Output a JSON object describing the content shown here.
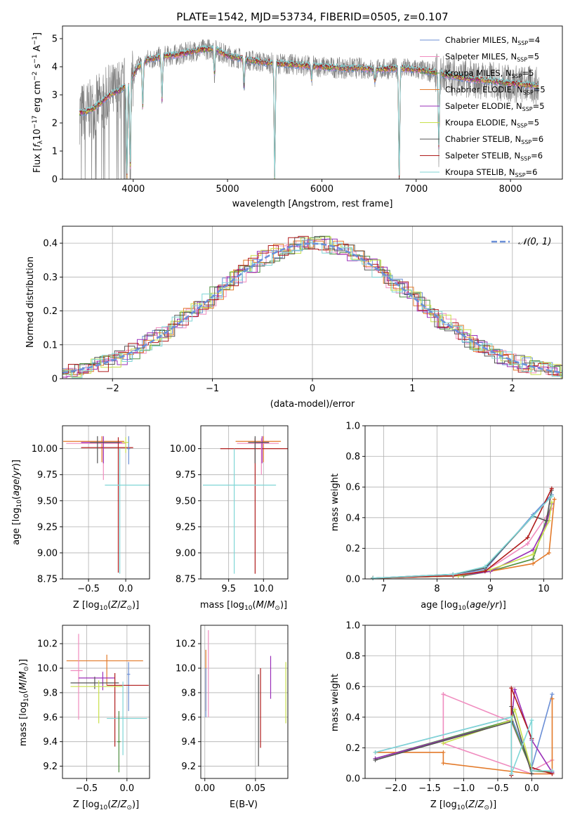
{
  "figure_title": "PLATE=1542, MJD=53734, FIBERID=0505, z=0.107",
  "series_styles": [
    {
      "name": "Chabrier MILES, N$_{SSP}$=4",
      "label_main": "Chabrier MILES, N",
      "label_sub": "SSP",
      "label_tail": "=4",
      "color": "#6b8fd6"
    },
    {
      "name": "Salpeter MILES, N$_{SSP}$=5",
      "label_main": "Salpeter MILES, N",
      "label_sub": "SSP",
      "label_tail": "=5",
      "color": "#f08cbf"
    },
    {
      "name": "Kroupa MILES, N$_{SSP}$=5",
      "label_main": "Kroupa MILES, N",
      "label_sub": "SSP",
      "label_tail": "=5",
      "color": "#4f8f3f"
    },
    {
      "name": "Chabrier ELODIE, N$_{SSP}$=5",
      "label_main": "Chabrier ELODIE, N",
      "label_sub": "SSP",
      "label_tail": "=5",
      "color": "#e37a2a"
    },
    {
      "name": "Salpeter ELODIE, N$_{SSP}$=5",
      "label_main": "Salpeter ELODIE, N",
      "label_sub": "SSP",
      "label_tail": "=5",
      "color": "#9a2fb8"
    },
    {
      "name": "Kroupa ELODIE, N$_{SSP}$=5",
      "label_main": "Kroupa ELODIE, N",
      "label_sub": "SSP",
      "label_tail": "=5",
      "color": "#c8e04a"
    },
    {
      "name": "Chabrier STELIB, N$_{SSP}$=6",
      "label_main": "Chabrier STELIB, N",
      "label_sub": "SSP",
      "label_tail": "=6",
      "color": "#555555"
    },
    {
      "name": "Salpeter STELIB, N$_{SSP}$=6",
      "label_main": "Salpeter STELIB, N",
      "label_sub": "SSP",
      "label_tail": "=6",
      "color": "#b01c1c"
    },
    {
      "name": "Kroupa STELIB, N$_{SSP}$=6",
      "label_main": "Kroupa STELIB, N",
      "label_sub": "SSP",
      "label_tail": "=6",
      "color": "#7fd6d6"
    }
  ],
  "chart_data": [
    {
      "id": "spectrum",
      "type": "line",
      "xlabel": "wavelength [Angstrom, rest frame]",
      "ylabel": "Flux [f$_\\lambda$10$^{-17}$ erg cm$^{-2}$ s$^{-1}$ A$^{-1}$]",
      "xlim": [
        3250,
        8550
      ],
      "ylim": [
        0,
        5.45
      ],
      "xticks": [
        4000,
        5000,
        6000,
        7000,
        8000
      ],
      "yticks": [
        0,
        1,
        2,
        3,
        4,
        5
      ],
      "legend": "right",
      "grid": false,
      "continuum": {
        "x": [
          3430,
          3550,
          3650,
          3750,
          3850,
          3950,
          4050,
          4150,
          4300,
          4500,
          4700,
          4850,
          5000,
          5200,
          5400,
          5600,
          5800,
          6000,
          6200,
          6400,
          6600,
          6800,
          7000,
          7200,
          7400,
          7600,
          7800,
          8000,
          8200,
          8300
        ],
        "y": [
          2.35,
          2.45,
          2.7,
          3.0,
          3.15,
          3.4,
          4.0,
          4.25,
          4.35,
          4.45,
          4.6,
          4.65,
          4.4,
          4.25,
          4.15,
          4.1,
          4.05,
          4.0,
          3.95,
          3.95,
          3.9,
          3.95,
          3.9,
          3.8,
          3.65,
          3.55,
          3.5,
          3.4,
          3.35,
          3.3
        ]
      },
      "dips": [
        {
          "x": 3933,
          "y": 0.05
        },
        {
          "x": 3968,
          "y": 0.3
        },
        {
          "x": 4101,
          "y": 2.6
        },
        {
          "x": 4305,
          "y": 2.8
        },
        {
          "x": 4861,
          "y": 3.7
        },
        {
          "x": 5175,
          "y": 3.3
        },
        {
          "x": 5500,
          "y": 0.0
        },
        {
          "x": 5890,
          "y": 3.5
        },
        {
          "x": 6563,
          "y": 3.5
        },
        {
          "x": 6820,
          "y": 0.0
        },
        {
          "x": 7240,
          "y": 1.1
        }
      ]
    },
    {
      "id": "residuals",
      "type": "histogram",
      "xlabel": "(data-model)/error",
      "ylabel": "Normed distribution",
      "xlim": [
        -2.5,
        2.5
      ],
      "ylim": [
        0,
        0.45
      ],
      "xticks": [
        -2,
        -1,
        0,
        1,
        2
      ],
      "yticks": [
        0,
        0.1,
        0.2,
        0.3,
        0.4
      ],
      "grid": true,
      "legend": "top-right",
      "reference_label": "$\\mathcal{N}(0,1)$",
      "reference_label_text": "𝒩(0, 1)",
      "reference": {
        "type": "gaussian",
        "mu": 0,
        "sigma": 1
      }
    },
    {
      "id": "age_vs_Z",
      "type": "errorbar",
      "xlabel": "Z [log$_{10}$(Z/Z$_\\odot$)]",
      "ylabel": "age  [log$_{10}$(age/yr)]",
      "xlim": [
        -0.85,
        0.32
      ],
      "ylim": [
        8.75,
        10.22
      ],
      "xticks": [
        -0.5,
        0.0
      ],
      "yticks": [
        8.75,
        9.0,
        9.25,
        9.5,
        9.75,
        10.0
      ],
      "grid": true,
      "points": [
        {
          "s": 3,
          "x": -0.32,
          "y": 10.07,
          "xerr": [
            0.52,
            0.3
          ],
          "yerr": [
            0.2,
            0.05
          ]
        },
        {
          "s": 1,
          "x": -0.3,
          "y": 10.05,
          "xerr": [
            0.5,
            0.3
          ],
          "yerr": [
            0.35,
            0.05
          ]
        },
        {
          "s": 7,
          "x": -0.1,
          "y": 10.01,
          "xerr": [
            0.5,
            0.2
          ],
          "yerr": [
            1.2,
            0.1
          ]
        },
        {
          "s": 4,
          "x": -0.3,
          "y": 10.06,
          "xerr": [
            0.3,
            0.25
          ],
          "yerr": [
            0.2,
            0.06
          ]
        },
        {
          "s": 8,
          "x": -0.08,
          "y": 9.65,
          "xerr": [
            0.2,
            0.4
          ],
          "yerr": [
            0.85,
            0.35
          ]
        },
        {
          "s": 6,
          "x": -0.38,
          "y": 10.06,
          "xerr": [
            0.1,
            0.3
          ],
          "yerr": [
            0.2,
            0.06
          ]
        },
        {
          "s": 0,
          "x": 0.04,
          "y": 10.0,
          "xerr": [
            0.02,
            0.02
          ],
          "yerr": [
            0.15,
            0.12
          ]
        },
        {
          "s": 5,
          "x": 0.0,
          "y": 10.06,
          "xerr": [
            0.05,
            0.04
          ],
          "yerr": [
            0.1,
            0.05
          ]
        }
      ]
    },
    {
      "id": "age_vs_mass",
      "type": "errorbar",
      "xlabel": "mass [log$_{10}$(M/M$_\\odot$)]",
      "ylabel": "",
      "xlim": [
        9.1,
        10.35
      ],
      "ylim": [
        8.75,
        10.22
      ],
      "xticks": [
        9.5,
        10.0
      ],
      "yticks": [
        8.75,
        9.0,
        9.25,
        9.5,
        9.75,
        10.0
      ],
      "grid": true,
      "points": [
        {
          "s": 3,
          "x": 10.0,
          "y": 10.07,
          "xerr": [
            0.4,
            0.25
          ],
          "yerr": [
            0.2,
            0.05
          ]
        },
        {
          "s": 7,
          "x": 9.88,
          "y": 10.0,
          "xerr": [
            0.5,
            0.5
          ],
          "yerr": [
            1.2,
            0.1
          ]
        },
        {
          "s": 8,
          "x": 9.58,
          "y": 9.65,
          "xerr": [
            0.45,
            0.6
          ],
          "yerr": [
            0.85,
            0.35
          ]
        },
        {
          "s": 1,
          "x": 9.97,
          "y": 10.05,
          "xerr": [
            0.35,
            0.25
          ],
          "yerr": [
            0.3,
            0.05
          ]
        },
        {
          "s": 4,
          "x": 9.98,
          "y": 10.06,
          "xerr": [
            0.1,
            0.1
          ],
          "yerr": [
            0.2,
            0.06
          ]
        },
        {
          "s": 6,
          "x": 9.88,
          "y": 10.06,
          "xerr": [
            0.1,
            0.2
          ],
          "yerr": [
            0.2,
            0.06
          ]
        }
      ]
    },
    {
      "id": "weight_vs_age",
      "type": "line",
      "xlabel": "age  [log$_{10}$(age/yr)]",
      "ylabel": "mass weight",
      "xlim": [
        6.65,
        10.35
      ],
      "ylim": [
        0,
        1.0
      ],
      "xticks": [
        7,
        8,
        9,
        10
      ],
      "yticks": [
        0.0,
        0.2,
        0.4,
        0.6,
        0.8,
        1.0
      ],
      "grid": true,
      "series": [
        {
          "s": 0,
          "x": [
            6.8,
            8.3,
            8.9,
            9.8,
            10.15
          ],
          "y": [
            0.005,
            0.03,
            0.06,
            0.42,
            0.55
          ]
        },
        {
          "s": 1,
          "x": [
            6.8,
            8.3,
            8.9,
            9.7,
            10.15
          ],
          "y": [
            0.005,
            0.02,
            0.05,
            0.23,
            0.46
          ]
        },
        {
          "s": 2,
          "x": [
            6.8,
            8.5,
            9.0,
            9.8,
            10.15
          ],
          "y": [
            0.005,
            0.02,
            0.05,
            0.13,
            0.49
          ]
        },
        {
          "s": 3,
          "x": [
            6.8,
            8.4,
            9.0,
            9.8,
            10.1,
            10.2
          ],
          "y": [
            0.005,
            0.02,
            0.05,
            0.1,
            0.17,
            0.52
          ]
        },
        {
          "s": 4,
          "x": [
            6.8,
            8.4,
            9.0,
            9.8,
            10.05,
            10.15
          ],
          "y": [
            0.005,
            0.02,
            0.05,
            0.19,
            0.36,
            0.49
          ]
        },
        {
          "s": 5,
          "x": [
            6.8,
            8.4,
            9.0,
            9.8,
            10.1,
            10.15
          ],
          "y": [
            0.005,
            0.02,
            0.06,
            0.16,
            0.38,
            0.5
          ]
        },
        {
          "s": 6,
          "x": [
            6.8,
            8.3,
            8.9,
            9.8,
            10.05,
            10.15
          ],
          "y": [
            0.005,
            0.03,
            0.07,
            0.41,
            0.38,
            0.58
          ]
        },
        {
          "s": 7,
          "x": [
            6.8,
            8.3,
            8.9,
            9.7,
            10.15
          ],
          "y": [
            0.005,
            0.02,
            0.05,
            0.27,
            0.59
          ]
        },
        {
          "s": 8,
          "x": [
            6.8,
            8.3,
            8.9,
            9.8,
            10.15
          ],
          "y": [
            0.005,
            0.03,
            0.08,
            0.41,
            0.54
          ]
        }
      ]
    },
    {
      "id": "mass_vs_Z",
      "type": "errorbar",
      "xlabel": "Z [log$_{10}$(Z/Z$_\\odot$)]",
      "ylabel": "mass [log$_{10}$(M/M$_\\odot$)]",
      "xlim": [
        -0.8,
        0.28
      ],
      "ylim": [
        9.1,
        10.35
      ],
      "xticks": [
        -0.5,
        0.0
      ],
      "yticks": [
        9.2,
        9.4,
        9.6,
        9.8,
        10.0,
        10.2
      ],
      "grid": true,
      "points": [
        {
          "s": 3,
          "x": -0.25,
          "y": 10.06,
          "xerr": [
            0.5,
            0.45
          ],
          "yerr": [
            0.2,
            0.05
          ]
        },
        {
          "s": 1,
          "x": -0.6,
          "y": 9.98,
          "xerr": [
            0.1,
            0.05
          ],
          "yerr": [
            0.4,
            0.3
          ]
        },
        {
          "s": 0,
          "x": 0.02,
          "y": 9.95,
          "xerr": [
            0.02,
            0.02
          ],
          "yerr": [
            0.3,
            0.1
          ]
        },
        {
          "s": 4,
          "x": -0.3,
          "y": 9.92,
          "xerr": [
            0.3,
            0.15
          ],
          "yerr": [
            0.1,
            0.05
          ]
        },
        {
          "s": 6,
          "x": -0.4,
          "y": 9.88,
          "xerr": [
            0.3,
            0.3
          ],
          "yerr": [
            0.05,
            0.05
          ]
        },
        {
          "s": 7,
          "x": -0.15,
          "y": 9.86,
          "xerr": [
            0.1,
            0.42
          ],
          "yerr": [
            0.5,
            0.1
          ]
        },
        {
          "s": 5,
          "x": -0.35,
          "y": 9.85,
          "xerr": [
            0.35,
            0.3
          ],
          "yerr": [
            0.3,
            0.05
          ]
        },
        {
          "s": 8,
          "x": -0.05,
          "y": 9.59,
          "xerr": [
            0.2,
            0.3
          ],
          "yerr": [
            0.3,
            0.3
          ]
        },
        {
          "s": 2,
          "x": -0.1,
          "y": 9.4,
          "xerr": [
            0.02,
            0.02
          ],
          "yerr": [
            0.25,
            0.25
          ]
        }
      ]
    },
    {
      "id": "mass_vs_EBV",
      "type": "errorbar",
      "xlabel": "E(B-V)",
      "ylabel": "",
      "xlim": [
        -0.004,
        0.082
      ],
      "ylim": [
        9.1,
        10.35
      ],
      "xticks": [
        0.0,
        0.05
      ],
      "yticks": [
        9.2,
        9.4,
        9.6,
        9.8,
        10.0,
        10.2
      ],
      "grid": true,
      "points": [
        {
          "s": 1,
          "x": 0.0035,
          "y": 10.05,
          "xerr": [
            0,
            0
          ],
          "yerr": [
            0.45,
            0.26
          ]
        },
        {
          "s": 3,
          "x": 0.001,
          "y": 9.95,
          "xerr": [
            0,
            0
          ],
          "yerr": [
            0.3,
            0.2
          ]
        },
        {
          "s": 0,
          "x": 0.001,
          "y": 9.9,
          "xerr": [
            0,
            0
          ],
          "yerr": [
            0.3,
            0.1
          ]
        },
        {
          "s": 6,
          "x": 0.053,
          "y": 9.5,
          "xerr": [
            0,
            0
          ],
          "yerr": [
            0.3,
            0.45
          ]
        },
        {
          "s": 7,
          "x": 0.055,
          "y": 9.7,
          "xerr": [
            0,
            0
          ],
          "yerr": [
            0.35,
            0.3
          ]
        },
        {
          "s": 4,
          "x": 0.065,
          "y": 9.9,
          "xerr": [
            0,
            0
          ],
          "yerr": [
            0.15,
            0.2
          ]
        },
        {
          "s": 5,
          "x": 0.08,
          "y": 9.8,
          "xerr": [
            0,
            0
          ],
          "yerr": [
            0.25,
            0.25
          ]
        }
      ]
    },
    {
      "id": "weight_vs_Z",
      "type": "line",
      "xlabel": "Z [log$_{10}$(Z/Z$_\\odot$)]",
      "ylabel": "mass weight",
      "xlim": [
        -2.45,
        0.45
      ],
      "ylim": [
        0,
        1.0
      ],
      "xticks": [
        -2.0,
        -1.5,
        -1.0,
        -0.5,
        0.0
      ],
      "yticks": [
        0.0,
        0.2,
        0.4,
        0.6,
        0.8,
        1.0
      ],
      "grid": true,
      "series": [
        {
          "s": 0,
          "x": [
            -2.3,
            -0.3,
            0.0,
            0.3
          ],
          "y": [
            0.17,
            0.4,
            0.07,
            0.55
          ]
        },
        {
          "s": 1,
          "x": [
            -1.3,
            -0.3,
            0.0,
            0.3
          ],
          "y": [
            0.55,
            0.37,
            0.05,
            0.12
          ]
        },
        {
          "s": 1,
          "x": [
            -1.3,
            -1.3,
            0.0,
            0.3
          ],
          "y": [
            0.55,
            0.23,
            0.03,
            0.03
          ]
        },
        {
          "s": 2,
          "x": [
            -2.3,
            -0.3,
            0.0,
            0.3
          ],
          "y": [
            0.13,
            0.38,
            0.05,
            0.04
          ]
        },
        {
          "s": 3,
          "x": [
            -2.3,
            -1.3,
            -1.3,
            0.0,
            0.3,
            0.3
          ],
          "y": [
            0.17,
            0.17,
            0.1,
            0.03,
            0.03,
            0.52
          ]
        },
        {
          "s": 4,
          "x": [
            -2.3,
            -0.3,
            -0.25,
            0.0,
            0.3
          ],
          "y": [
            0.13,
            0.37,
            0.58,
            0.25,
            0.04
          ]
        },
        {
          "s": 5,
          "x": [
            -1.3,
            -0.3,
            -0.25,
            0.0
          ],
          "y": [
            0.23,
            0.38,
            0.45,
            0.05
          ]
        },
        {
          "s": 6,
          "x": [
            -2.3,
            -0.3,
            -0.3,
            0.0,
            0.0
          ],
          "y": [
            0.12,
            0.37,
            0.47,
            0.03,
            0.26
          ]
        },
        {
          "s": 7,
          "x": [
            -0.3,
            -0.3,
            0.0,
            0.0,
            0.3
          ],
          "y": [
            0.02,
            0.59,
            0.26,
            0.07,
            0.03
          ]
        },
        {
          "s": 8,
          "x": [
            -2.3,
            -0.3,
            -0.3,
            0.0,
            0.0,
            0.3
          ],
          "y": [
            0.17,
            0.4,
            0.03,
            0.38,
            0.05,
            0.05
          ]
        }
      ]
    }
  ]
}
